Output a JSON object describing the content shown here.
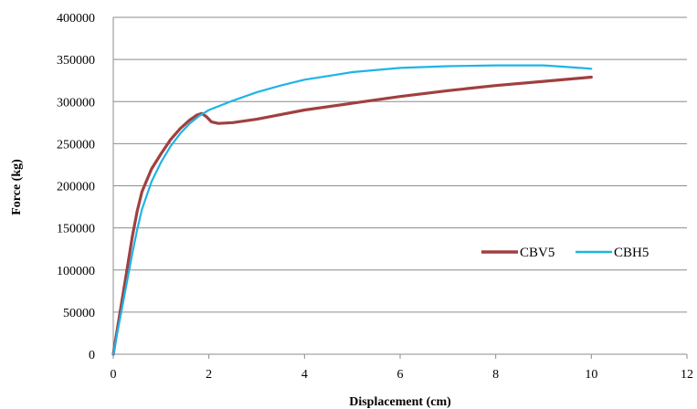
{
  "chart_data": {
    "type": "line",
    "title": "",
    "xlabel": "Displacement  (cm)",
    "ylabel": "Force  (kg)",
    "xlim": [
      0,
      12
    ],
    "ylim": [
      0,
      400000
    ],
    "x_ticks": [
      0,
      2,
      4,
      6,
      8,
      10,
      12
    ],
    "y_ticks": [
      0,
      50000,
      100000,
      150000,
      200000,
      250000,
      300000,
      350000,
      400000
    ],
    "grid": "horizontal",
    "legend_position": "right",
    "series": [
      {
        "name": "CBV5",
        "color": "#A04040",
        "points": [
          [
            0,
            0
          ],
          [
            0.1,
            35000
          ],
          [
            0.2,
            70000
          ],
          [
            0.3,
            105000
          ],
          [
            0.4,
            140000
          ],
          [
            0.5,
            170000
          ],
          [
            0.6,
            193000
          ],
          [
            0.8,
            220000
          ],
          [
            1.0,
            238000
          ],
          [
            1.2,
            255000
          ],
          [
            1.4,
            268000
          ],
          [
            1.6,
            278000
          ],
          [
            1.75,
            284000
          ],
          [
            1.85,
            286000
          ],
          [
            1.95,
            282000
          ],
          [
            2.05,
            276000
          ],
          [
            2.2,
            274000
          ],
          [
            2.5,
            275000
          ],
          [
            3.0,
            279000
          ],
          [
            4.0,
            290000
          ],
          [
            5.0,
            298000
          ],
          [
            6.0,
            306000
          ],
          [
            7.0,
            313000
          ],
          [
            8.0,
            319000
          ],
          [
            9.0,
            324000
          ],
          [
            10.0,
            329000
          ]
        ]
      },
      {
        "name": "CBH5",
        "color": "#1EB4E8",
        "points": [
          [
            0,
            0
          ],
          [
            0.1,
            30000
          ],
          [
            0.2,
            60000
          ],
          [
            0.3,
            90000
          ],
          [
            0.4,
            120000
          ],
          [
            0.5,
            148000
          ],
          [
            0.6,
            172000
          ],
          [
            0.8,
            205000
          ],
          [
            1.0,
            228000
          ],
          [
            1.2,
            247000
          ],
          [
            1.4,
            262000
          ],
          [
            1.6,
            274000
          ],
          [
            1.8,
            283000
          ],
          [
            2.0,
            290000
          ],
          [
            2.5,
            301000
          ],
          [
            3.0,
            311000
          ],
          [
            3.5,
            319000
          ],
          [
            4.0,
            326000
          ],
          [
            5.0,
            335000
          ],
          [
            6.0,
            340000
          ],
          [
            7.0,
            342000
          ],
          [
            8.0,
            343000
          ],
          [
            9.0,
            343000
          ],
          [
            9.5,
            341000
          ],
          [
            10.0,
            339000
          ]
        ]
      }
    ]
  }
}
